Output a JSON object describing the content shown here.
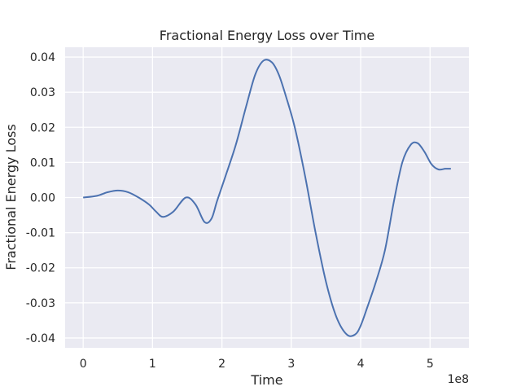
{
  "chart_data": {
    "type": "line",
    "title": "Fractional Energy Loss over Time",
    "xlabel": "Time",
    "ylabel": "Fractional Energy Loss",
    "x_offset_label": "1e8",
    "xlim": [
      -26000000.0,
      556000000.0
    ],
    "ylim": [
      -0.0428,
      0.0428
    ],
    "x_ticks": [
      0,
      100000000.0,
      200000000.0,
      300000000.0,
      400000000.0,
      500000000.0
    ],
    "x_tick_labels": [
      "0",
      "1",
      "2",
      "3",
      "4",
      "5"
    ],
    "y_ticks": [
      -0.04,
      -0.03,
      -0.02,
      -0.01,
      0.0,
      0.01,
      0.02,
      0.03,
      0.04
    ],
    "y_tick_labels": [
      "-0.04",
      "-0.03",
      "-0.02",
      "-0.01",
      "0.00",
      "0.01",
      "0.02",
      "0.03",
      "0.04"
    ],
    "grid": true,
    "background_color": "#eaeaf2",
    "grid_color": "#ffffff",
    "series": [
      {
        "color": "#4c72b0",
        "x": [
          0,
          20000000.0,
          35000000.0,
          50000000.0,
          65000000.0,
          80000000.0,
          95000000.0,
          105000000.0,
          115000000.0,
          130000000.0,
          148000000.0,
          162000000.0,
          175000000.0,
          185000000.0,
          193000000.0,
          205000000.0,
          220000000.0,
          235000000.0,
          248000000.0,
          260000000.0,
          272000000.0,
          282000000.0,
          292000000.0,
          305000000.0,
          320000000.0,
          335000000.0,
          350000000.0,
          365000000.0,
          380000000.0,
          392000000.0,
          400000000.0,
          410000000.0,
          422000000.0,
          435000000.0,
          448000000.0,
          460000000.0,
          472000000.0,
          482000000.0,
          492000000.0,
          502000000.0,
          512000000.0,
          522000000.0,
          530000000.0
        ],
        "y": [
          0.0,
          0.0005,
          0.0015,
          0.002,
          0.0015,
          0.0,
          -0.002,
          -0.004,
          -0.0055,
          -0.004,
          0.0,
          -0.002,
          -0.007,
          -0.006,
          -0.001,
          0.006,
          0.015,
          0.026,
          0.035,
          0.039,
          0.0385,
          0.035,
          0.029,
          0.02,
          0.006,
          -0.01,
          -0.024,
          -0.034,
          -0.039,
          -0.039,
          -0.0365,
          -0.031,
          -0.024,
          -0.015,
          -0.001,
          0.01,
          0.015,
          0.0155,
          0.013,
          0.0095,
          0.008,
          0.0082,
          0.0082
        ]
      }
    ]
  }
}
